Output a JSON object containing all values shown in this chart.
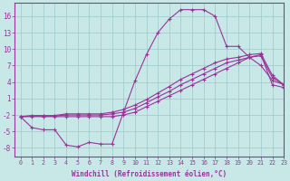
{
  "xlabel": "Windchill (Refroidissement éolien,°C)",
  "bg_color": "#c8e8e8",
  "grid_color": "#9ec8c8",
  "line_color": "#993399",
  "xlim": [
    -0.5,
    23
  ],
  "ylim": [
    -9.5,
    18.5
  ],
  "yticks": [
    -8,
    -5,
    -2,
    1,
    4,
    7,
    10,
    13,
    16
  ],
  "xticks": [
    0,
    1,
    2,
    3,
    4,
    5,
    6,
    7,
    8,
    9,
    10,
    11,
    12,
    13,
    14,
    15,
    16,
    17,
    18,
    19,
    20,
    21,
    22,
    23
  ],
  "hours": [
    0,
    1,
    2,
    3,
    4,
    5,
    6,
    7,
    8,
    9,
    10,
    11,
    12,
    13,
    14,
    15,
    16,
    17,
    18,
    19,
    20,
    21,
    22,
    23
  ],
  "y_main": [
    -2.3,
    -4.3,
    -4.7,
    -4.7,
    -7.5,
    -7.8,
    -7.0,
    -7.3,
    -7.3,
    -1.5,
    4.2,
    9.0,
    13.0,
    15.5,
    17.2,
    17.2,
    17.2,
    16.0,
    10.5,
    10.5,
    8.5,
    7.0,
    4.3,
    3.5
  ],
  "y_line2": [
    -2.3,
    -2.3,
    -2.3,
    -2.3,
    -2.3,
    -2.3,
    -2.3,
    -2.3,
    -2.3,
    -2.0,
    -1.5,
    -0.5,
    0.5,
    1.5,
    2.5,
    3.5,
    4.5,
    5.5,
    6.5,
    7.5,
    8.5,
    9.0,
    3.5,
    3.0
  ],
  "y_line3": [
    -2.3,
    -2.2,
    -2.2,
    -2.2,
    -2.0,
    -2.0,
    -2.0,
    -2.0,
    -1.8,
    -1.5,
    -0.8,
    0.2,
    1.3,
    2.3,
    3.5,
    4.5,
    5.5,
    6.5,
    7.5,
    8.0,
    8.5,
    8.8,
    4.8,
    3.5
  ],
  "y_line4": [
    -2.3,
    -2.1,
    -2.1,
    -2.1,
    -1.8,
    -1.8,
    -1.8,
    -1.8,
    -1.5,
    -1.0,
    -0.2,
    0.8,
    2.0,
    3.2,
    4.5,
    5.5,
    6.5,
    7.5,
    8.2,
    8.5,
    9.0,
    9.2,
    5.2,
    3.5
  ]
}
